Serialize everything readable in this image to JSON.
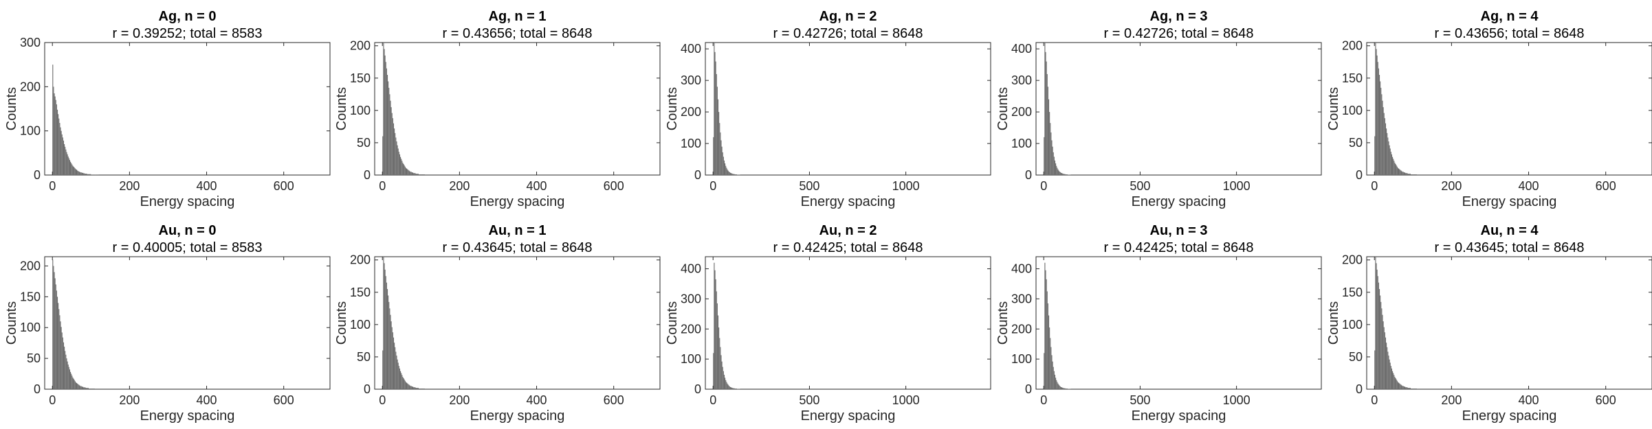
{
  "chart_data": [
    {
      "type": "bar",
      "title": "Ag, n = 0",
      "subtitle": "r = 0.39252; total = 8583",
      "xlabel": "Energy spacing",
      "ylabel": "Counts",
      "xlim": [
        -20,
        720
      ],
      "ylim": [
        0,
        300
      ],
      "xticks": [
        0,
        200,
        400,
        600
      ],
      "yticks": [
        0,
        100,
        200,
        300
      ],
      "bin_start": 0,
      "bin_width": 2,
      "counts": [
        250,
        200,
        185,
        178,
        170,
        160,
        148,
        138,
        128,
        118,
        108,
        100,
        92,
        85,
        78,
        70,
        64,
        58,
        52,
        47,
        42,
        38,
        34,
        30,
        27,
        24,
        21,
        19,
        17,
        15,
        13,
        12,
        10,
        9,
        8,
        7,
        6,
        6,
        5,
        5,
        4,
        4,
        3,
        3,
        3,
        2,
        2,
        2,
        2,
        2,
        1,
        1,
        1,
        1,
        1,
        1,
        1,
        1,
        1,
        1
      ]
    },
    {
      "type": "bar",
      "title": "Ag, n = 1",
      "subtitle": "r = 0.43656; total = 8648",
      "xlabel": "Energy spacing",
      "ylabel": "Counts",
      "xlim": [
        -20,
        720
      ],
      "ylim": [
        0,
        205
      ],
      "xticks": [
        0,
        200,
        400,
        600
      ],
      "yticks": [
        0,
        50,
        100,
        150,
        200
      ],
      "bin_start": 0,
      "bin_width": 2,
      "counts": [
        60,
        205,
        195,
        185,
        175,
        165,
        155,
        145,
        135,
        125,
        115,
        105,
        96,
        88,
        80,
        72,
        65,
        58,
        52,
        46,
        41,
        36,
        32,
        28,
        25,
        22,
        19,
        17,
        15,
        13,
        11,
        10,
        9,
        8,
        7,
        6,
        5,
        5,
        4,
        4,
        3,
        3,
        3,
        2,
        2,
        2,
        2,
        1,
        1,
        1,
        1,
        1,
        1,
        1,
        1
      ]
    },
    {
      "type": "bar",
      "title": "Ag, n = 2",
      "subtitle": "r = 0.42726; total = 8648",
      "xlabel": "Energy spacing",
      "ylabel": "Counts",
      "xlim": [
        -40,
        1440
      ],
      "ylim": [
        0,
        420
      ],
      "xticks": [
        0,
        500,
        1000
      ],
      "yticks": [
        0,
        100,
        200,
        300,
        400
      ],
      "bin_start": 0,
      "bin_width": 4,
      "counts": [
        120,
        420,
        390,
        360,
        320,
        280,
        240,
        200,
        165,
        135,
        110,
        90,
        72,
        58,
        46,
        37,
        29,
        23,
        18,
        14,
        11,
        9,
        7,
        6,
        5,
        4,
        3,
        3,
        2,
        2,
        2,
        1,
        1,
        1,
        1
      ]
    },
    {
      "type": "bar",
      "title": "Ag, n = 3",
      "subtitle": "r = 0.42726; total = 8648",
      "xlabel": "Energy spacing",
      "ylabel": "Counts",
      "xlim": [
        -40,
        1440
      ],
      "ylim": [
        0,
        420
      ],
      "xticks": [
        0,
        500,
        1000
      ],
      "yticks": [
        0,
        100,
        200,
        300,
        400
      ],
      "bin_start": 0,
      "bin_width": 4,
      "counts": [
        120,
        420,
        390,
        360,
        320,
        280,
        240,
        200,
        165,
        135,
        110,
        90,
        72,
        58,
        46,
        37,
        29,
        23,
        18,
        14,
        11,
        9,
        7,
        6,
        5,
        4,
        3,
        3,
        2,
        2,
        2,
        1,
        1,
        1,
        1
      ]
    },
    {
      "type": "bar",
      "title": "Ag, n = 4",
      "subtitle": "r = 0.43656; total = 8648",
      "xlabel": "Energy spacing",
      "ylabel": "Counts",
      "xlim": [
        -20,
        720
      ],
      "ylim": [
        0,
        205
      ],
      "xticks": [
        0,
        200,
        400,
        600
      ],
      "yticks": [
        0,
        50,
        100,
        150,
        200
      ],
      "bin_start": 0,
      "bin_width": 2,
      "counts": [
        60,
        205,
        195,
        185,
        175,
        165,
        155,
        145,
        135,
        125,
        115,
        105,
        96,
        88,
        80,
        72,
        65,
        58,
        52,
        46,
        41,
        36,
        32,
        28,
        25,
        22,
        19,
        17,
        15,
        13,
        11,
        10,
        9,
        8,
        7,
        6,
        5,
        5,
        4,
        4,
        3,
        3,
        3,
        2,
        2,
        2,
        2,
        1,
        1,
        1,
        1,
        1,
        1,
        1,
        1
      ]
    },
    {
      "type": "bar",
      "title": "Au, n = 0",
      "subtitle": "r = 0.40005; total = 8583",
      "xlabel": "Energy spacing",
      "ylabel": "Counts",
      "xlim": [
        -20,
        720
      ],
      "ylim": [
        0,
        215
      ],
      "xticks": [
        0,
        200,
        400,
        600
      ],
      "yticks": [
        0,
        50,
        100,
        150,
        200
      ],
      "bin_start": 0,
      "bin_width": 2,
      "counts": [
        210,
        200,
        190,
        180,
        170,
        160,
        150,
        140,
        130,
        120,
        110,
        101,
        92,
        84,
        76,
        69,
        62,
        56,
        50,
        45,
        40,
        36,
        32,
        28,
        25,
        22,
        19,
        17,
        15,
        13,
        11,
        10,
        9,
        8,
        7,
        6,
        5,
        5,
        4,
        4,
        3,
        3,
        3,
        2,
        2,
        2,
        2,
        1,
        1,
        1,
        1,
        1,
        1,
        1,
        1
      ]
    },
    {
      "type": "bar",
      "title": "Au, n = 1",
      "subtitle": "r = 0.43645; total = 8648",
      "xlabel": "Energy spacing",
      "ylabel": "Counts",
      "xlim": [
        -20,
        720
      ],
      "ylim": [
        0,
        205
      ],
      "xticks": [
        0,
        200,
        400,
        600
      ],
      "yticks": [
        0,
        50,
        100,
        150,
        200
      ],
      "bin_start": 0,
      "bin_width": 2,
      "counts": [
        60,
        205,
        195,
        185,
        175,
        165,
        155,
        145,
        135,
        125,
        115,
        105,
        96,
        88,
        80,
        72,
        65,
        58,
        52,
        46,
        41,
        36,
        32,
        28,
        25,
        22,
        19,
        17,
        15,
        13,
        11,
        10,
        9,
        8,
        7,
        6,
        5,
        5,
        4,
        4,
        3,
        3,
        3,
        2,
        2,
        2,
        2,
        1,
        1,
        1,
        1,
        1,
        1,
        1,
        1
      ]
    },
    {
      "type": "bar",
      "title": "Au, n = 2",
      "subtitle": "r = 0.42425; total = 8648",
      "xlabel": "Energy spacing",
      "ylabel": "Counts",
      "xlim": [
        -40,
        1440
      ],
      "ylim": [
        0,
        440
      ],
      "xticks": [
        0,
        500,
        1000
      ],
      "yticks": [
        0,
        100,
        200,
        300,
        400
      ],
      "bin_start": 0,
      "bin_width": 4,
      "counts": [
        120,
        420,
        395,
        365,
        325,
        285,
        245,
        205,
        170,
        140,
        113,
        92,
        74,
        60,
        48,
        38,
        30,
        24,
        19,
        15,
        12,
        9,
        7,
        6,
        5,
        4,
        3,
        3,
        2,
        2,
        2,
        1,
        1,
        1,
        1
      ]
    },
    {
      "type": "bar",
      "title": "Au, n = 3",
      "subtitle": "r = 0.42425; total = 8648",
      "xlabel": "Energy spacing",
      "ylabel": "Counts",
      "xlim": [
        -40,
        1440
      ],
      "ylim": [
        0,
        440
      ],
      "xticks": [
        0,
        500,
        1000
      ],
      "yticks": [
        0,
        100,
        200,
        300,
        400
      ],
      "bin_start": 0,
      "bin_width": 4,
      "counts": [
        120,
        420,
        395,
        365,
        325,
        285,
        245,
        205,
        170,
        140,
        113,
        92,
        74,
        60,
        48,
        38,
        30,
        24,
        19,
        15,
        12,
        9,
        7,
        6,
        5,
        4,
        3,
        3,
        2,
        2,
        2,
        1,
        1,
        1,
        1
      ]
    },
    {
      "type": "bar",
      "title": "Au, n = 4",
      "subtitle": "r = 0.43645; total = 8648",
      "xlabel": "Energy spacing",
      "ylabel": "Counts",
      "xlim": [
        -20,
        720
      ],
      "ylim": [
        0,
        205
      ],
      "xticks": [
        0,
        200,
        400,
        600
      ],
      "yticks": [
        0,
        50,
        100,
        150,
        200
      ],
      "bin_start": 0,
      "bin_width": 2,
      "counts": [
        60,
        205,
        195,
        185,
        175,
        165,
        155,
        145,
        135,
        125,
        115,
        105,
        96,
        88,
        80,
        72,
        65,
        58,
        52,
        46,
        41,
        36,
        32,
        28,
        25,
        22,
        19,
        17,
        15,
        13,
        11,
        10,
        9,
        8,
        7,
        6,
        5,
        5,
        4,
        4,
        3,
        3,
        3,
        2,
        2,
        2,
        2,
        1,
        1,
        1,
        1,
        1,
        1,
        1,
        1
      ]
    }
  ]
}
